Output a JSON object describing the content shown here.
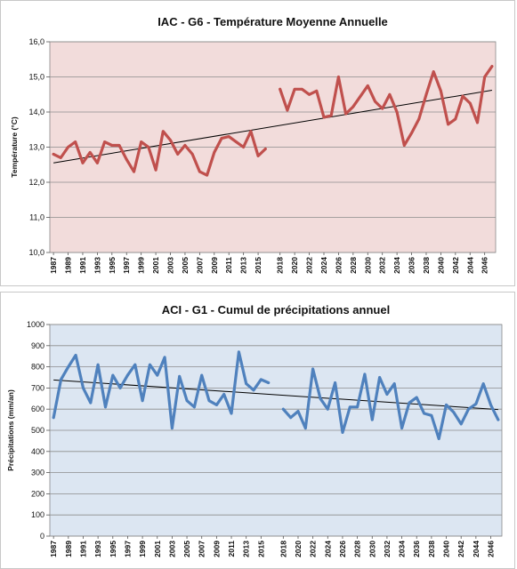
{
  "chart_data": [
    {
      "type": "line",
      "title": "IAC - G6 - Température Moyenne Annuelle",
      "xlabel": "",
      "ylabel": "Température (°C)",
      "ylim": [
        10,
        16
      ],
      "yticks": [
        "10,0",
        "11,0",
        "12,0",
        "13,0",
        "14,0",
        "15,0",
        "16,0"
      ],
      "xticks": [
        "1987",
        "1989",
        "1991",
        "1993",
        "1995",
        "1997",
        "1999",
        "2001",
        "2003",
        "2005",
        "2007",
        "2009",
        "2011",
        "2013",
        "2015",
        "2018",
        "2020",
        "2022",
        "2024",
        "2026",
        "2028",
        "2030",
        "2032",
        "2034",
        "2036",
        "2038",
        "2040",
        "2042",
        "2044",
        "2046"
      ],
      "grid": true,
      "trendline": true,
      "colors": {
        "line": "#c0504d",
        "background": "#f2dcdb",
        "trend": "#000000"
      },
      "series": [
        {
          "values": [
            12.8,
            12.7,
            13.0,
            13.15,
            12.55,
            12.85,
            12.55,
            13.15,
            13.05,
            13.05,
            12.65,
            12.3,
            13.15,
            13.0,
            12.35,
            13.45,
            13.2,
            12.8,
            13.05,
            12.8,
            12.3,
            12.2,
            12.85,
            13.25,
            13.3,
            13.15,
            13.0,
            13.45,
            12.75,
            12.95
          ]
        },
        {
          "values": [
            14.65,
            14.05,
            14.65,
            14.65,
            14.5,
            14.6,
            13.85,
            13.9,
            15.0,
            13.95,
            14.15,
            14.45,
            14.75,
            14.3,
            14.1,
            14.5,
            14.0,
            13.05,
            13.4,
            13.8,
            14.5,
            15.15,
            14.6,
            13.65,
            13.8,
            14.45,
            14.25,
            13.7,
            15.0,
            15.3
          ]
        }
      ],
      "trend": {
        "start": 12.55,
        "end": 14.62
      }
    },
    {
      "type": "line",
      "title": "ACI - G1 - Cumul de précipitations annuel",
      "xlabel": "",
      "ylabel": "Précipitations (mm/an)",
      "ylim": [
        0,
        1000
      ],
      "yticks": [
        "0",
        "100",
        "200",
        "300",
        "400",
        "500",
        "600",
        "700",
        "800",
        "900",
        "1000"
      ],
      "xticks": [
        "1987",
        "1989",
        "1991",
        "1993",
        "1995",
        "1997",
        "1999",
        "2001",
        "2003",
        "2005",
        "2007",
        "2009",
        "2011",
        "2013",
        "2015",
        "2018",
        "2020",
        "2022",
        "2024",
        "2026",
        "2028",
        "2030",
        "2032",
        "2034",
        "2036",
        "2038",
        "2040",
        "2042",
        "2044",
        "2046"
      ],
      "grid": true,
      "trendline": true,
      "colors": {
        "line": "#4f81bd",
        "background": "#dce6f2",
        "trend": "#000000"
      },
      "series": [
        {
          "values": [
            560,
            740,
            800,
            855,
            700,
            630,
            810,
            610,
            760,
            700,
            760,
            810,
            640,
            810,
            760,
            845,
            510,
            755,
            640,
            610,
            760,
            640,
            620,
            670,
            580,
            870,
            720,
            690,
            740,
            725
          ]
        },
        {
          "values": [
            600,
            560,
            590,
            510,
            790,
            650,
            600,
            725,
            490,
            610,
            610,
            765,
            550,
            750,
            670,
            720,
            510,
            630,
            655,
            580,
            570,
            460,
            620,
            585,
            530,
            600,
            625,
            720,
            620,
            550
          ]
        }
      ],
      "trend": {
        "start": 738,
        "end": 598
      }
    }
  ]
}
